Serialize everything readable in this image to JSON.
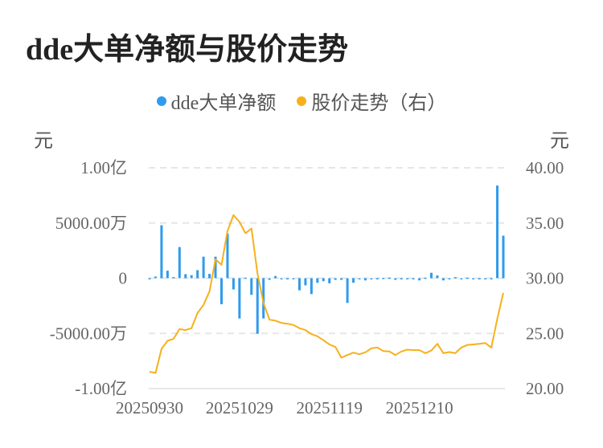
{
  "title": "dde大单净额与股价走势",
  "chart_data": {
    "type": "bar+line",
    "title": "dde大单净额与股价走势",
    "legend_position": "top",
    "grid": true,
    "left_axis": {
      "unit": "元",
      "ylim": [
        -10000,
        10000
      ],
      "ticks": [
        10000,
        5000,
        0,
        -5000,
        -10000
      ],
      "tick_labels": [
        "1.00亿",
        "5000.00万",
        "0",
        "-5000.00万",
        "-1.00亿"
      ]
    },
    "right_axis": {
      "unit": "元",
      "ylim": [
        20,
        40
      ],
      "ticks": [
        40,
        35,
        30,
        25,
        20
      ],
      "tick_labels": [
        "40.00",
        "35.00",
        "30.00",
        "25.00",
        "20.00"
      ]
    },
    "x_tick_labels": [
      {
        "index": 0,
        "label": "20250930"
      },
      {
        "index": 15,
        "label": "20251029"
      },
      {
        "index": 30,
        "label": "20251119"
      },
      {
        "index": 45,
        "label": "20251210"
      }
    ],
    "series": [
      {
        "name": "dde大单净额",
        "type": "bar",
        "axis": "left",
        "unit": "万",
        "color": "#2f9bec",
        "values": [
          -100,
          150,
          4800,
          680,
          100,
          2820,
          365,
          270,
          730,
          1950,
          390,
          1950,
          -2360,
          4040,
          -1020,
          -3650,
          50,
          -1510,
          -5040,
          -3650,
          -150,
          200,
          -30,
          -50,
          -100,
          -1100,
          -650,
          -1440,
          -420,
          -270,
          -460,
          -150,
          -150,
          -2240,
          -410,
          -50,
          -200,
          -30,
          -20,
          30,
          50,
          -150,
          -50,
          -50,
          -20,
          -200,
          50,
          490,
          250,
          -200,
          -100,
          100,
          -20,
          50,
          -30,
          -50,
          -30,
          -20,
          8390,
          3850
        ]
      },
      {
        "name": "股价走势（右）",
        "type": "line",
        "axis": "right",
        "color": "#f7b01c",
        "values": [
          21.53,
          21.42,
          23.6,
          24.33,
          24.5,
          25.4,
          25.3,
          25.47,
          26.85,
          27.58,
          28.81,
          31.72,
          31.21,
          34.27,
          35.72,
          35.09,
          34.07,
          34.5,
          30.44,
          27.77,
          26.24,
          26.15,
          25.95,
          25.88,
          25.76,
          25.47,
          25.3,
          24.93,
          24.74,
          24.38,
          24.0,
          23.77,
          22.8,
          23.04,
          23.26,
          23.11,
          23.29,
          23.65,
          23.72,
          23.4,
          23.36,
          23.04,
          23.36,
          23.53,
          23.48,
          23.48,
          23.21,
          23.45,
          24.06,
          23.21,
          23.31,
          23.21,
          23.72,
          23.96,
          24.0,
          24.05,
          24.13,
          23.72,
          26.31,
          28.67
        ]
      }
    ]
  }
}
